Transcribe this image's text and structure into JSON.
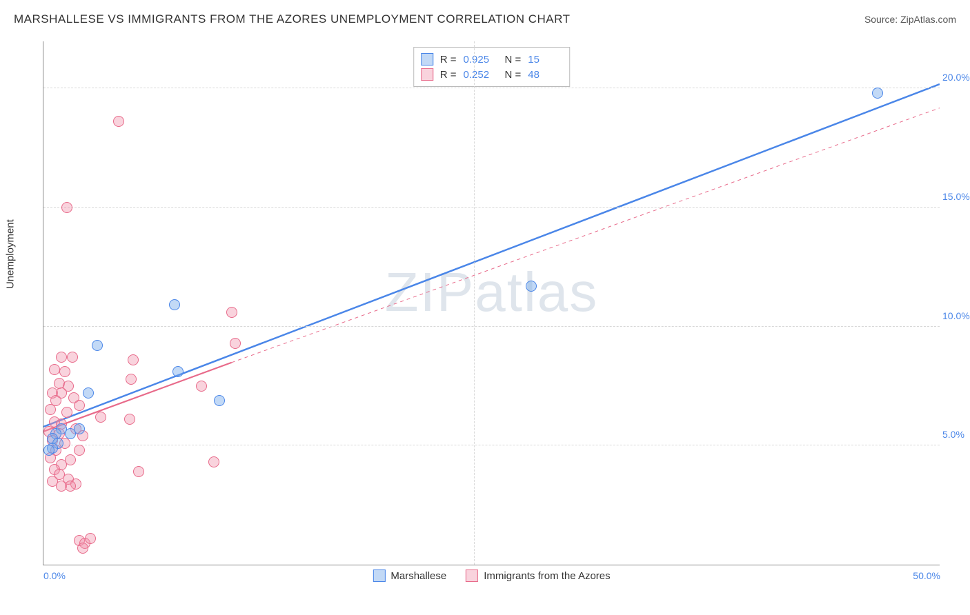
{
  "header": {
    "title": "MARSHALLESE VS IMMIGRANTS FROM THE AZORES UNEMPLOYMENT CORRELATION CHART",
    "source_prefix": "Source: ",
    "source_name": "ZipAtlas.com"
  },
  "axes": {
    "y_label": "Unemployment",
    "x_range": [
      0,
      50
    ],
    "y_range": [
      0,
      22
    ],
    "y_ticks": [
      {
        "v": 5.0,
        "label": "5.0%"
      },
      {
        "v": 10.0,
        "label": "10.0%"
      },
      {
        "v": 15.0,
        "label": "15.0%"
      },
      {
        "v": 20.0,
        "label": "20.0%"
      }
    ],
    "x_ticks": [
      {
        "v": 0.0,
        "label": "0.0%"
      },
      {
        "v": 50.0,
        "label": "50.0%"
      }
    ],
    "grid_v_at": [
      24
    ],
    "grid_color": "#d8d8d8",
    "axis_color": "#888888"
  },
  "series": {
    "blue": {
      "label": "Marshallese",
      "color": "#4a86e8",
      "fill": "rgba(120,170,235,0.45)",
      "stroke": "#4a86e8",
      "label_color": "#4a86e8",
      "marker_radius": 8,
      "R": "0.925",
      "N": "15",
      "trend": {
        "x1": 0,
        "y1": 5.8,
        "x2": 50,
        "y2": 20.2,
        "width": 2.5,
        "dash": "none"
      },
      "points": [
        {
          "x": 46.5,
          "y": 19.8
        },
        {
          "x": 27.2,
          "y": 11.7
        },
        {
          "x": 7.3,
          "y": 10.9
        },
        {
          "x": 3.0,
          "y": 9.2
        },
        {
          "x": 7.5,
          "y": 8.1
        },
        {
          "x": 2.5,
          "y": 7.2
        },
        {
          "x": 9.8,
          "y": 6.9
        },
        {
          "x": 1.0,
          "y": 5.7
        },
        {
          "x": 2.0,
          "y": 5.7
        },
        {
          "x": 0.7,
          "y": 5.5
        },
        {
          "x": 1.5,
          "y": 5.5
        },
        {
          "x": 0.5,
          "y": 5.3
        },
        {
          "x": 0.8,
          "y": 5.1
        },
        {
          "x": 0.5,
          "y": 4.9
        },
        {
          "x": 0.3,
          "y": 4.8
        }
      ]
    },
    "pink": {
      "label": "Immigrants from the Azores",
      "color": "#e86a8a",
      "fill": "rgba(240,145,170,0.40)",
      "stroke": "#e86a8a",
      "label_color": "#333333",
      "marker_radius": 8,
      "R": "0.252",
      "N": "48",
      "trend": {
        "x1": 0,
        "y1": 5.6,
        "x2": 10.5,
        "y2": 8.5,
        "width": 2.2,
        "dash": "none"
      },
      "trend_ext": {
        "x1": 10.5,
        "y1": 8.5,
        "x2": 50,
        "y2": 19.2,
        "width": 1,
        "dash": "5,5"
      },
      "points": [
        {
          "x": 4.2,
          "y": 18.6
        },
        {
          "x": 1.3,
          "y": 15.0
        },
        {
          "x": 10.5,
          "y": 10.6
        },
        {
          "x": 10.7,
          "y": 9.3
        },
        {
          "x": 1.0,
          "y": 8.7
        },
        {
          "x": 1.6,
          "y": 8.7
        },
        {
          "x": 5.0,
          "y": 8.6
        },
        {
          "x": 0.6,
          "y": 8.2
        },
        {
          "x": 1.2,
          "y": 8.1
        },
        {
          "x": 4.9,
          "y": 7.8
        },
        {
          "x": 0.9,
          "y": 7.6
        },
        {
          "x": 1.4,
          "y": 7.5
        },
        {
          "x": 8.8,
          "y": 7.5
        },
        {
          "x": 0.5,
          "y": 7.2
        },
        {
          "x": 1.0,
          "y": 7.2
        },
        {
          "x": 1.7,
          "y": 7.0
        },
        {
          "x": 0.7,
          "y": 6.9
        },
        {
          "x": 2.0,
          "y": 6.7
        },
        {
          "x": 0.4,
          "y": 6.5
        },
        {
          "x": 1.3,
          "y": 6.4
        },
        {
          "x": 3.2,
          "y": 6.2
        },
        {
          "x": 4.8,
          "y": 6.1
        },
        {
          "x": 0.6,
          "y": 6.0
        },
        {
          "x": 1.0,
          "y": 5.9
        },
        {
          "x": 1.8,
          "y": 5.7
        },
        {
          "x": 0.3,
          "y": 5.6
        },
        {
          "x": 0.9,
          "y": 5.5
        },
        {
          "x": 2.2,
          "y": 5.4
        },
        {
          "x": 0.5,
          "y": 5.2
        },
        {
          "x": 1.2,
          "y": 5.1
        },
        {
          "x": 0.7,
          "y": 4.8
        },
        {
          "x": 2.0,
          "y": 4.8
        },
        {
          "x": 0.4,
          "y": 4.5
        },
        {
          "x": 1.5,
          "y": 4.4
        },
        {
          "x": 1.0,
          "y": 4.2
        },
        {
          "x": 9.5,
          "y": 4.3
        },
        {
          "x": 0.6,
          "y": 4.0
        },
        {
          "x": 5.3,
          "y": 3.9
        },
        {
          "x": 0.9,
          "y": 3.8
        },
        {
          "x": 1.4,
          "y": 3.6
        },
        {
          "x": 0.5,
          "y": 3.5
        },
        {
          "x": 1.8,
          "y": 3.4
        },
        {
          "x": 1.0,
          "y": 3.3
        },
        {
          "x": 1.5,
          "y": 3.3
        },
        {
          "x": 2.0,
          "y": 1.0
        },
        {
          "x": 2.3,
          "y": 0.9
        },
        {
          "x": 2.6,
          "y": 1.1
        },
        {
          "x": 2.2,
          "y": 0.7
        }
      ]
    }
  },
  "stats_box": {
    "r_label": "R =",
    "n_label": "N ="
  },
  "watermark": "ZIPatlas",
  "colors": {
    "tick_blue": "#4a86e8",
    "text": "#333333",
    "background": "#ffffff"
  }
}
